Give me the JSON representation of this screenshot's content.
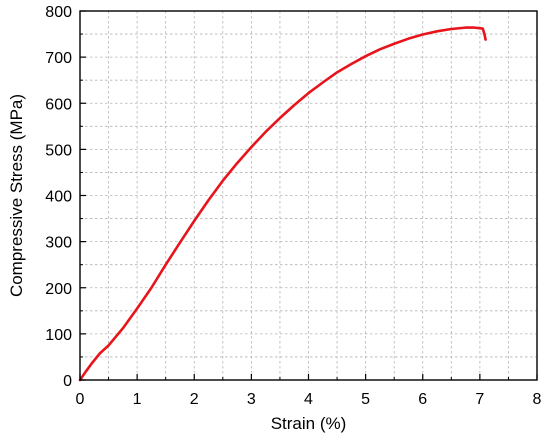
{
  "chart_data": {
    "type": "line",
    "title": "",
    "xlabel": "Strain (%)",
    "ylabel": "Compressive Stress (MPa)",
    "xlim": [
      0,
      8
    ],
    "ylim": [
      0,
      800
    ],
    "xticks": [
      0,
      1,
      2,
      3,
      4,
      5,
      6,
      7,
      8
    ],
    "yticks": [
      0,
      100,
      200,
      300,
      400,
      500,
      600,
      700,
      800
    ],
    "x_tick_labels": [
      "0",
      "1",
      "2",
      "3",
      "4",
      "5",
      "6",
      "7",
      "8"
    ],
    "y_tick_labels": [
      "0",
      "100",
      "200",
      "300",
      "400",
      "500",
      "600",
      "700",
      "800"
    ],
    "grid": true,
    "legend": "none",
    "series": [
      {
        "color": "#e8141b",
        "x": [
          0,
          0.1,
          0.2,
          0.35,
          0.5,
          0.75,
          1.0,
          1.25,
          1.5,
          1.75,
          2.0,
          2.25,
          2.5,
          2.75,
          3.0,
          3.25,
          3.5,
          3.75,
          4.0,
          4.25,
          4.5,
          4.75,
          5.0,
          5.25,
          5.5,
          5.75,
          6.0,
          6.25,
          6.5,
          6.75,
          6.9,
          7.05,
          7.08,
          7.1
        ],
        "y": [
          0,
          18,
          35,
          58,
          75,
          112,
          155,
          200,
          250,
          298,
          345,
          390,
          432,
          470,
          505,
          538,
          568,
          596,
          622,
          645,
          667,
          685,
          702,
          717,
          729,
          740,
          749,
          756,
          761,
          764,
          764,
          762,
          750,
          738
        ]
      }
    ]
  }
}
